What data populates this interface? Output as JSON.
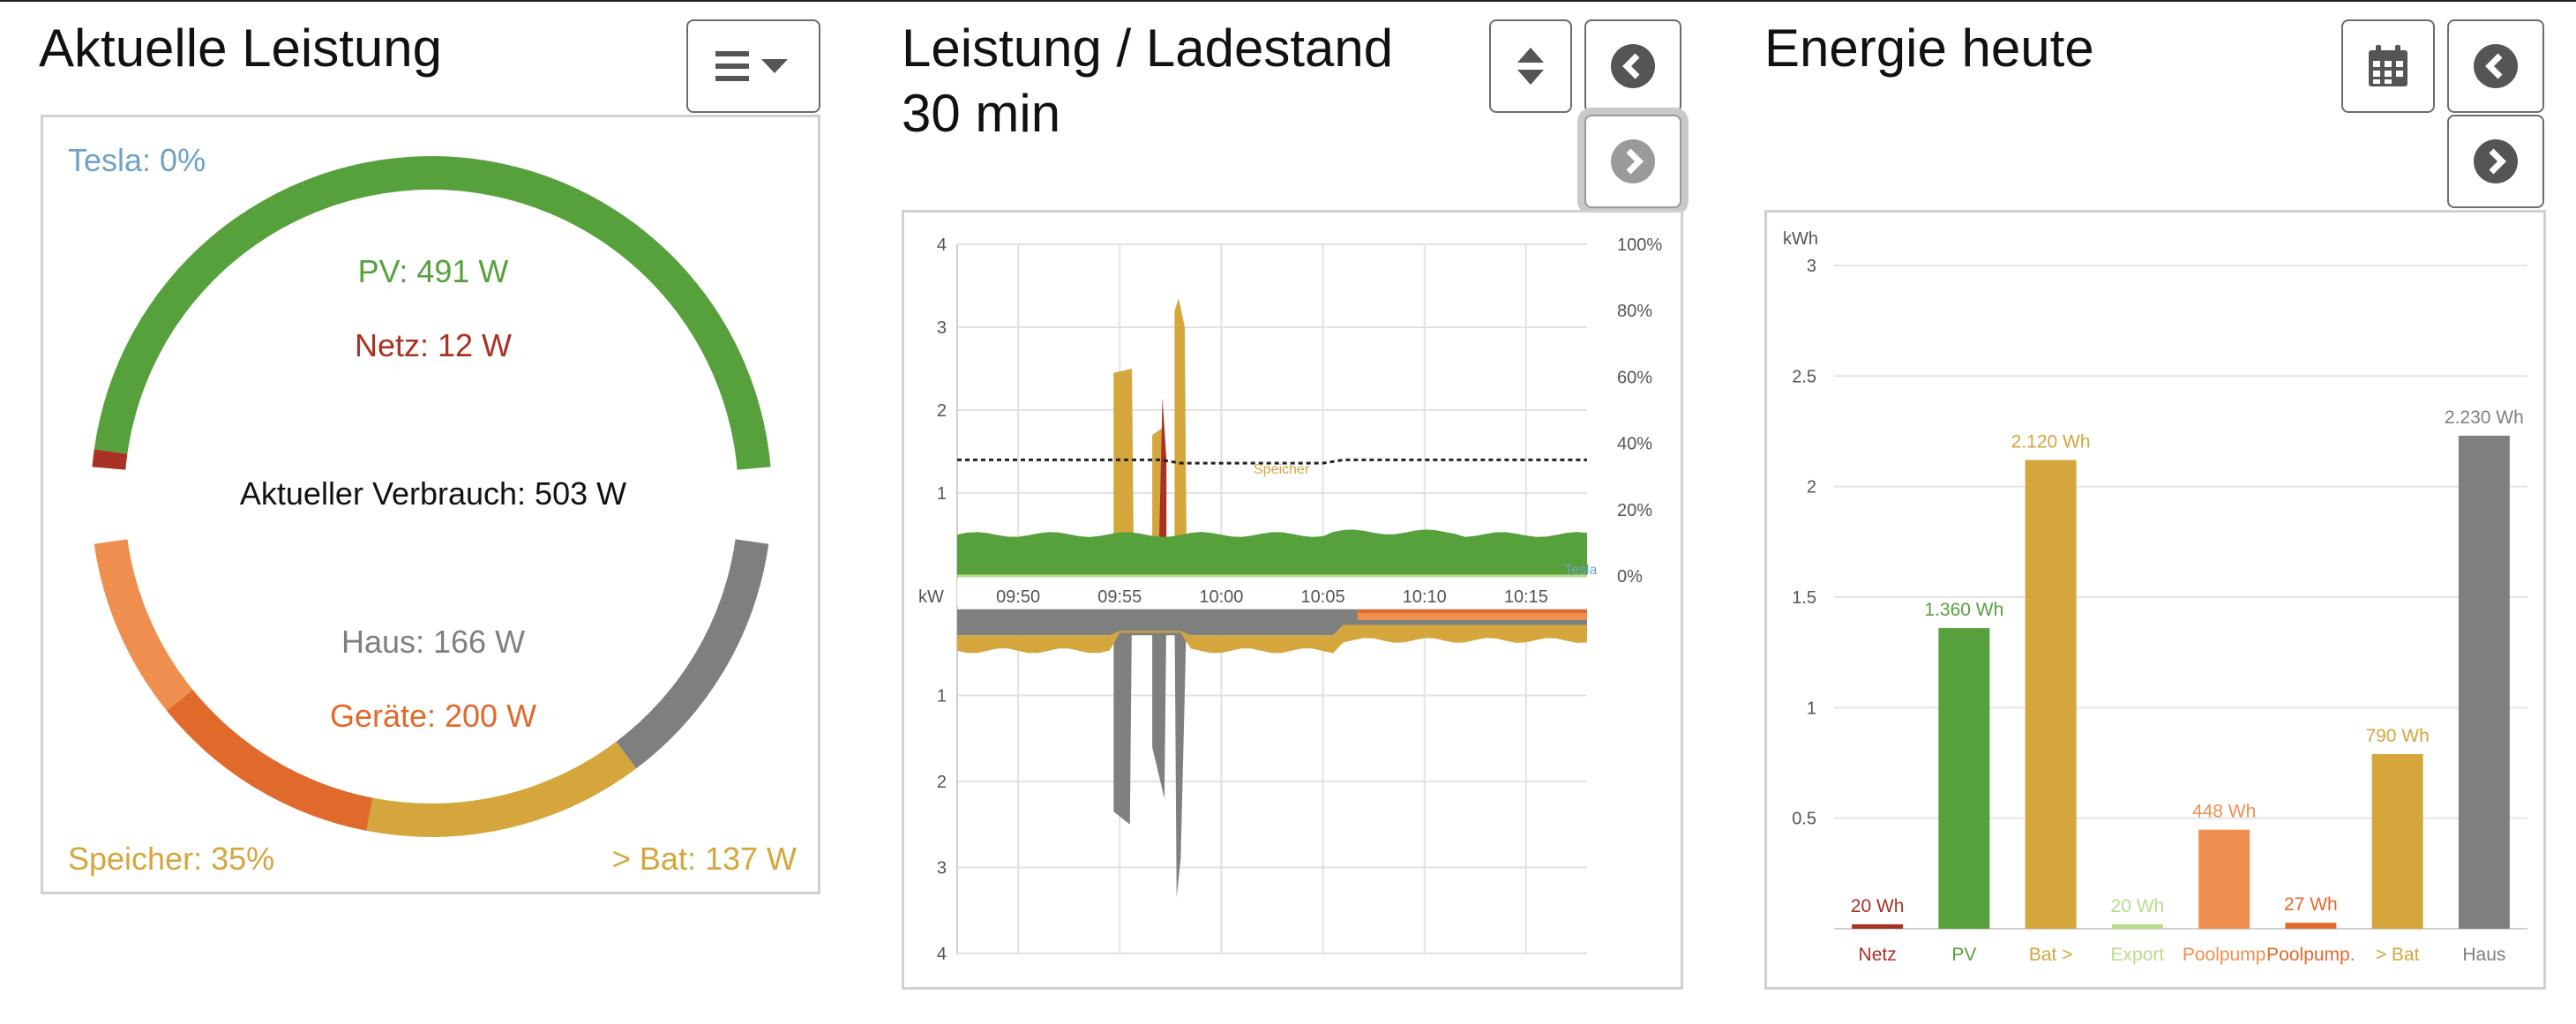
{
  "colors": {
    "grid": "#a83224",
    "pv": "#56a13c",
    "battery": "#d4a63c",
    "export": "#b8dc8a",
    "device1": "#ef8f4f",
    "device2": "#e06a2c",
    "house": "#7f7f7f",
    "tesla": "#6fa3c5"
  },
  "power_pane": {
    "title": "Aktuelle Leistung",
    "menu_icon": "hamburger-menu-icon",
    "tesla": "Tesla: 0%",
    "pv": "PV: 491 W",
    "netz": "Netz: 12 W",
    "consumption": "Aktueller Verbrauch: 503 W",
    "haus": "Haus: 166 W",
    "geraete": "Geräte: 200 W",
    "speicher": "Speicher: 35%",
    "to_bat": "> Bat: 137 W"
  },
  "chart_pane": {
    "title_line1": "Leistung / Ladestand",
    "title_line2": "30 min",
    "sort_icon": "sort-updown-icon",
    "prev_icon": "chevron-left-icon",
    "next_icon": "chevron-right-icon"
  },
  "energy_pane": {
    "title": "Energie heute",
    "calendar_icon": "calendar-icon",
    "prev_icon": "chevron-left-icon",
    "next_icon": "chevron-right-icon"
  },
  "chart_data": [
    {
      "type": "area",
      "title": "",
      "x_ticks": [
        "09:50",
        "09:55",
        "10:00",
        "10:05",
        "10:10",
        "10:15"
      ],
      "y_label": "kW",
      "y_upper_ticks": [
        "4",
        "3",
        "2",
        "1"
      ],
      "y_lower_ticks": [
        "1",
        "2",
        "3",
        "4"
      ],
      "y_right_ticks": [
        "100%",
        "80%",
        "60%",
        "40%",
        "20%",
        "0%"
      ],
      "annotations": [
        "Speicher",
        "Tesla"
      ],
      "ylim_upper": [
        0,
        4
      ],
      "ylim_lower": [
        0,
        4
      ],
      "soc_percent": [
        35,
        35,
        35,
        35,
        34,
        34,
        34,
        34,
        35,
        35,
        35,
        35,
        35
      ],
      "soc_times": [
        "09:47",
        "09:50",
        "09:55",
        "09:57",
        "09:58",
        "10:00",
        "10:03",
        "10:05",
        "10:06",
        "10:10",
        "10:12",
        "10:15",
        "10:18"
      ]
    },
    {
      "type": "bar",
      "title": "",
      "ylabel": "kWh",
      "yticks": [
        "0.5",
        "1",
        "1.5",
        "2",
        "2.5",
        "3"
      ],
      "ylim": [
        0,
        3
      ],
      "categories": [
        "Netz",
        "PV",
        "Bat >",
        "Export",
        "Poolpump",
        "Poolpump.",
        "> Bat",
        "Haus"
      ],
      "values": [
        0.02,
        1.36,
        2.12,
        0.02,
        0.448,
        0.027,
        0.79,
        2.23
      ],
      "value_labels": [
        "20 Wh",
        "1.360 Wh",
        "2.120 Wh",
        "20 Wh",
        "448 Wh",
        "27 Wh",
        "790 Wh",
        "2.230 Wh"
      ],
      "colors": [
        "#a83224",
        "#56a13c",
        "#d4a63c",
        "#b8dc8a",
        "#ef8f4f",
        "#e06a2c",
        "#d4a63c",
        "#7f7f7f"
      ],
      "grid": true
    }
  ]
}
